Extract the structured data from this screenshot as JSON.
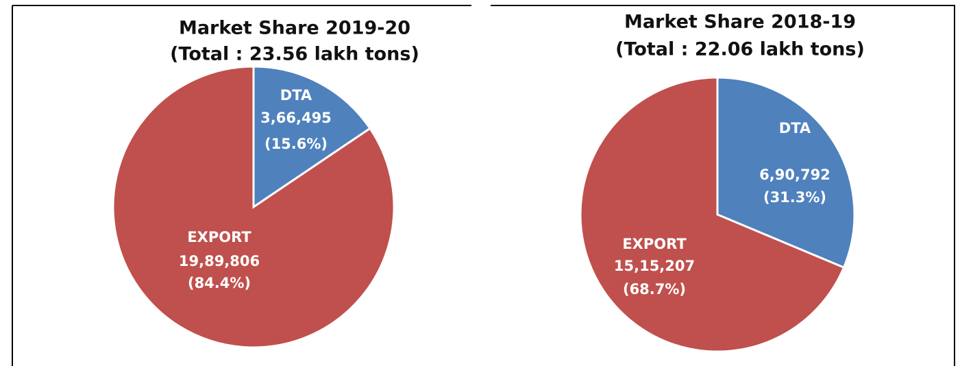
{
  "chart_data": [
    {
      "type": "pie",
      "title": "Market Share 2019-20",
      "subtitle": "(Total : 23.56 lakh tons)",
      "categories": [
        "DTA",
        "EXPORT"
      ],
      "values": [
        366495,
        1989806
      ],
      "value_labels": [
        "3,66,495",
        "19,89,806"
      ],
      "percentage_labels": [
        "(15.6%)",
        "(84.4%)"
      ],
      "colors": [
        "#4f81bd",
        "#c0504d"
      ]
    },
    {
      "type": "pie",
      "title": "Market Share 2018-19",
      "subtitle": "(Total : 22.06 lakh tons)",
      "categories": [
        "DTA",
        "EXPORT"
      ],
      "values": [
        690792,
        1515207
      ],
      "value_labels": [
        "6,90,792",
        "15,15,207"
      ],
      "percentage_labels": [
        "(31.3%)",
        "(68.7%)"
      ],
      "colors": [
        "#4f81bd",
        "#c0504d"
      ]
    }
  ]
}
